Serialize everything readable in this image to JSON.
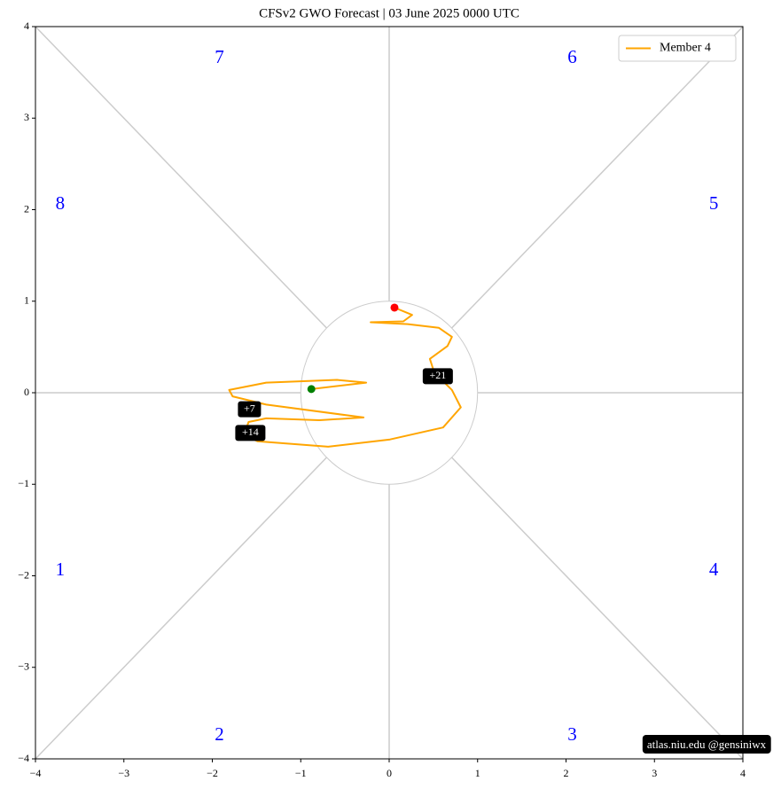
{
  "chart_data": {
    "type": "line",
    "title": "CFSv2 GWO Forecast   |   03  June  2025 0000 UTC",
    "watermark": "atlas.niu.edu  @gensiniwx",
    "xlim": [
      -4,
      4
    ],
    "ylim": [
      -4,
      4
    ],
    "xticks": [
      {
        "value": -4,
        "label": "−4"
      },
      {
        "value": -3,
        "label": "−3"
      },
      {
        "value": -2,
        "label": "−2"
      },
      {
        "value": -1,
        "label": "−1"
      },
      0,
      1,
      2,
      3,
      4
    ],
    "yticks": [
      {
        "value": -4,
        "label": "−4"
      },
      {
        "value": -3,
        "label": "−3"
      },
      {
        "value": -2,
        "label": "−2"
      },
      {
        "value": -1,
        "label": "−1"
      },
      0,
      1,
      2,
      3,
      4
    ],
    "legend": "upper right",
    "phase_labels": [
      "1",
      "2",
      "3",
      "4",
      "5",
      "6",
      "7",
      "8"
    ],
    "phase_color": "blue",
    "start_color": "green",
    "end_color": "red",
    "series": [
      {
        "name": "Member 4",
        "color": "orange",
        "x": [
          -0.88,
          -0.26,
          -0.59,
          -1.39,
          -1.81,
          -1.77,
          -1.39,
          -0.29,
          -0.79,
          -1.39,
          -1.59,
          -1.64,
          -1.49,
          -0.69,
          0.01,
          0.61,
          0.81,
          0.71,
          0.51,
          0.46,
          0.66,
          0.71,
          0.56,
          0.21,
          -0.21,
          0.16,
          0.26,
          0.06
        ],
        "y": [
          0.04,
          0.11,
          0.14,
          0.11,
          0.03,
          -0.04,
          -0.13,
          -0.27,
          -0.3,
          -0.28,
          -0.32,
          -0.46,
          -0.53,
          -0.59,
          -0.51,
          -0.38,
          -0.16,
          0.03,
          0.22,
          0.37,
          0.51,
          0.61,
          0.71,
          0.75,
          0.77,
          0.78,
          0.85,
          0.93
        ]
      }
    ],
    "annotations": [
      {
        "text": "+7",
        "x": -1.58,
        "y": -0.18
      },
      {
        "text": "+14",
        "x": -1.57,
        "y": -0.44
      },
      {
        "text": "+21",
        "x": 0.55,
        "y": 0.18
      }
    ]
  }
}
